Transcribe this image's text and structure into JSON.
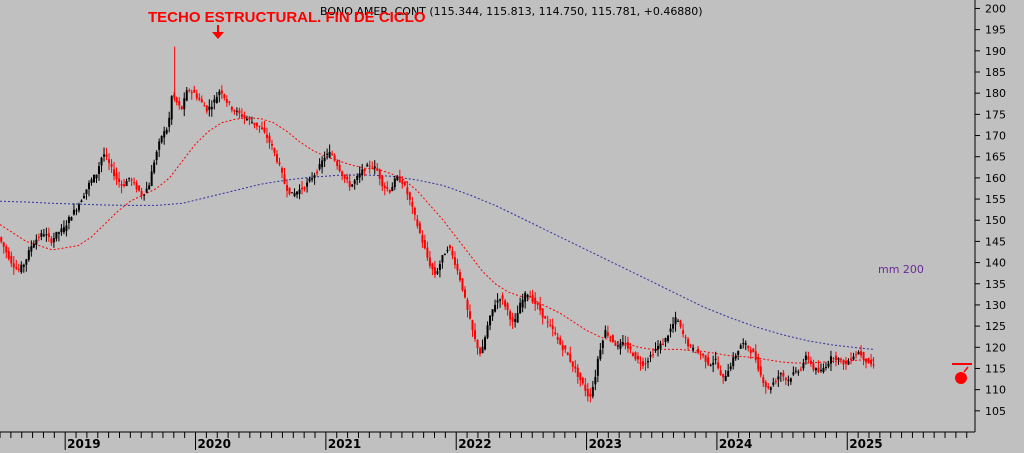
{
  "chart_data": {
    "type": "candlestick",
    "title": "BONO AMER. CONT (115.344, 115.813, 114.750, 115.781, +0.46880)",
    "annotation": "TECHO ESTRUCTURAL. FIN DE CICLO",
    "mm_label": "mm 200",
    "ylim": [
      100,
      202
    ],
    "yticks": [
      105,
      110,
      115,
      120,
      125,
      130,
      135,
      140,
      145,
      150,
      155,
      160,
      165,
      170,
      175,
      180,
      185,
      190,
      195,
      200
    ],
    "xlim": [
      2018.5,
      2025.98
    ],
    "years": [
      "2019",
      "2020",
      "2021",
      "2022",
      "2023",
      "2024",
      "2025"
    ],
    "price": [
      [
        2018.5,
        146
      ],
      [
        2018.55,
        143
      ],
      [
        2018.6,
        140
      ],
      [
        2018.65,
        138
      ],
      [
        2018.7,
        140
      ],
      [
        2018.75,
        144
      ],
      [
        2018.8,
        146
      ],
      [
        2018.85,
        147
      ],
      [
        2018.9,
        145
      ],
      [
        2018.95,
        147
      ],
      [
        2019.0,
        148
      ],
      [
        2019.05,
        151
      ],
      [
        2019.1,
        153
      ],
      [
        2019.15,
        156
      ],
      [
        2019.2,
        159
      ],
      [
        2019.25,
        161
      ],
      [
        2019.3,
        166
      ],
      [
        2019.35,
        163
      ],
      [
        2019.4,
        160
      ],
      [
        2019.45,
        158
      ],
      [
        2019.5,
        160
      ],
      [
        2019.55,
        158
      ],
      [
        2019.6,
        156
      ],
      [
        2019.65,
        158
      ],
      [
        2019.7,
        165
      ],
      [
        2019.75,
        170
      ],
      [
        2019.8,
        172
      ],
      [
        2019.83,
        180
      ],
      [
        2019.86,
        178
      ],
      [
        2019.9,
        176
      ],
      [
        2019.95,
        181
      ],
      [
        2020.0,
        180
      ],
      [
        2020.05,
        178
      ],
      [
        2020.1,
        176
      ],
      [
        2020.15,
        178
      ],
      [
        2020.2,
        181
      ],
      [
        2020.25,
        178
      ],
      [
        2020.3,
        176
      ],
      [
        2020.35,
        175
      ],
      [
        2020.4,
        174
      ],
      [
        2020.45,
        173
      ],
      [
        2020.5,
        172
      ],
      [
        2020.55,
        170
      ],
      [
        2020.6,
        167
      ],
      [
        2020.65,
        163
      ],
      [
        2020.7,
        158
      ],
      [
        2020.75,
        156
      ],
      [
        2020.8,
        157
      ],
      [
        2020.85,
        158
      ],
      [
        2020.9,
        160
      ],
      [
        2020.95,
        162
      ],
      [
        2021.0,
        165
      ],
      [
        2021.05,
        166
      ],
      [
        2021.1,
        163
      ],
      [
        2021.15,
        160
      ],
      [
        2021.2,
        158
      ],
      [
        2021.25,
        160
      ],
      [
        2021.3,
        162
      ],
      [
        2021.35,
        163
      ],
      [
        2021.4,
        162
      ],
      [
        2021.45,
        158
      ],
      [
        2021.5,
        157
      ],
      [
        2021.55,
        160
      ],
      [
        2021.6,
        159
      ],
      [
        2021.65,
        155
      ],
      [
        2021.7,
        150
      ],
      [
        2021.75,
        145
      ],
      [
        2021.8,
        140
      ],
      [
        2021.85,
        137
      ],
      [
        2021.9,
        141
      ],
      [
        2021.95,
        144
      ],
      [
        2022.0,
        140
      ],
      [
        2022.05,
        135
      ],
      [
        2022.1,
        128
      ],
      [
        2022.15,
        122
      ],
      [
        2022.2,
        118
      ],
      [
        2022.25,
        125
      ],
      [
        2022.3,
        130
      ],
      [
        2022.35,
        132
      ],
      [
        2022.4,
        129
      ],
      [
        2022.45,
        125
      ],
      [
        2022.5,
        130
      ],
      [
        2022.55,
        133
      ],
      [
        2022.6,
        131
      ],
      [
        2022.65,
        129
      ],
      [
        2022.7,
        126
      ],
      [
        2022.75,
        124
      ],
      [
        2022.8,
        121
      ],
      [
        2022.85,
        119
      ],
      [
        2022.9,
        116
      ],
      [
        2022.95,
        113
      ],
      [
        2023.0,
        110
      ],
      [
        2023.03,
        108
      ],
      [
        2023.07,
        112
      ],
      [
        2023.1,
        118
      ],
      [
        2023.15,
        124
      ],
      [
        2023.2,
        122
      ],
      [
        2023.25,
        120
      ],
      [
        2023.3,
        121
      ],
      [
        2023.35,
        119
      ],
      [
        2023.4,
        117
      ],
      [
        2023.45,
        116
      ],
      [
        2023.5,
        118
      ],
      [
        2023.55,
        120
      ],
      [
        2023.6,
        121
      ],
      [
        2023.65,
        124
      ],
      [
        2023.7,
        127
      ],
      [
        2023.75,
        123
      ],
      [
        2023.8,
        120
      ],
      [
        2023.85,
        119
      ],
      [
        2023.9,
        118
      ],
      [
        2023.95,
        116
      ],
      [
        2024.0,
        117
      ],
      [
        2024.05,
        112
      ],
      [
        2024.1,
        115
      ],
      [
        2024.15,
        118
      ],
      [
        2024.2,
        121
      ],
      [
        2024.25,
        120
      ],
      [
        2024.3,
        118
      ],
      [
        2024.35,
        113
      ],
      [
        2024.4,
        110
      ],
      [
        2024.45,
        112
      ],
      [
        2024.5,
        114
      ],
      [
        2024.55,
        112
      ],
      [
        2024.6,
        114
      ],
      [
        2024.65,
        115
      ],
      [
        2024.7,
        118
      ],
      [
        2024.75,
        115
      ],
      [
        2024.8,
        114
      ],
      [
        2024.85,
        116
      ],
      [
        2024.9,
        118
      ],
      [
        2024.95,
        117
      ],
      [
        2025.0,
        116
      ],
      [
        2025.05,
        118
      ],
      [
        2025.1,
        119
      ],
      [
        2025.15,
        117
      ],
      [
        2025.2,
        115.8
      ]
    ],
    "ma_short": [
      [
        2018.5,
        149
      ],
      [
        2018.6,
        147
      ],
      [
        2018.7,
        145
      ],
      [
        2018.8,
        144
      ],
      [
        2018.9,
        143
      ],
      [
        2019.0,
        143.5
      ],
      [
        2019.1,
        144
      ],
      [
        2019.2,
        146
      ],
      [
        2019.3,
        149
      ],
      [
        2019.4,
        152
      ],
      [
        2019.5,
        154.5
      ],
      [
        2019.6,
        156
      ],
      [
        2019.7,
        157.5
      ],
      [
        2019.8,
        160
      ],
      [
        2019.9,
        164
      ],
      [
        2020.0,
        168
      ],
      [
        2020.1,
        171
      ],
      [
        2020.2,
        173
      ],
      [
        2020.3,
        173.8
      ],
      [
        2020.4,
        174.2
      ],
      [
        2020.5,
        174
      ],
      [
        2020.6,
        173
      ],
      [
        2020.7,
        171
      ],
      [
        2020.8,
        168.5
      ],
      [
        2020.9,
        166.5
      ],
      [
        2021.0,
        165
      ],
      [
        2021.1,
        164
      ],
      [
        2021.2,
        163
      ],
      [
        2021.3,
        162.3
      ],
      [
        2021.4,
        162
      ],
      [
        2021.5,
        161
      ],
      [
        2021.6,
        159.5
      ],
      [
        2021.7,
        157
      ],
      [
        2021.8,
        153.5
      ],
      [
        2021.9,
        150
      ],
      [
        2022.0,
        146
      ],
      [
        2022.1,
        142
      ],
      [
        2022.2,
        138
      ],
      [
        2022.3,
        135
      ],
      [
        2022.4,
        133
      ],
      [
        2022.5,
        132
      ],
      [
        2022.6,
        131
      ],
      [
        2022.7,
        129.5
      ],
      [
        2022.8,
        128
      ],
      [
        2022.9,
        126
      ],
      [
        2023.0,
        124
      ],
      [
        2023.1,
        122.5
      ],
      [
        2023.2,
        121.5
      ],
      [
        2023.3,
        121
      ],
      [
        2023.4,
        120
      ],
      [
        2023.5,
        119.5
      ],
      [
        2023.6,
        119.5
      ],
      [
        2023.7,
        119.5
      ],
      [
        2023.8,
        119.3
      ],
      [
        2023.9,
        119
      ],
      [
        2024.0,
        118.5
      ],
      [
        2024.1,
        118
      ],
      [
        2024.2,
        117.8
      ],
      [
        2024.3,
        117.5
      ],
      [
        2024.4,
        117
      ],
      [
        2024.5,
        116.5
      ],
      [
        2024.6,
        116.3
      ],
      [
        2024.7,
        116.3
      ],
      [
        2024.8,
        116.5
      ],
      [
        2024.9,
        116.7
      ],
      [
        2025.0,
        116.8
      ],
      [
        2025.1,
        117
      ],
      [
        2025.2,
        117
      ]
    ],
    "ma200": [
      [
        2018.5,
        154.5
      ],
      [
        2018.7,
        154.3
      ],
      [
        2018.9,
        154
      ],
      [
        2019.1,
        153.8
      ],
      [
        2019.3,
        153.6
      ],
      [
        2019.5,
        153.5
      ],
      [
        2019.7,
        153.5
      ],
      [
        2019.9,
        154
      ],
      [
        2020.1,
        155.5
      ],
      [
        2020.3,
        157
      ],
      [
        2020.5,
        158.5
      ],
      [
        2020.7,
        159.5
      ],
      [
        2020.9,
        160.2
      ],
      [
        2021.1,
        160.6
      ],
      [
        2021.3,
        160.7
      ],
      [
        2021.5,
        160.4
      ],
      [
        2021.7,
        159.5
      ],
      [
        2021.9,
        158.2
      ],
      [
        2022.1,
        156
      ],
      [
        2022.3,
        153.5
      ],
      [
        2022.5,
        150.5
      ],
      [
        2022.7,
        147.5
      ],
      [
        2022.9,
        144.5
      ],
      [
        2023.1,
        141.5
      ],
      [
        2023.3,
        138.5
      ],
      [
        2023.5,
        135.5
      ],
      [
        2023.7,
        132.5
      ],
      [
        2023.9,
        129.5
      ],
      [
        2024.1,
        127
      ],
      [
        2024.3,
        124.8
      ],
      [
        2024.5,
        123
      ],
      [
        2024.7,
        121.5
      ],
      [
        2024.9,
        120.5
      ],
      [
        2025.1,
        119.8
      ],
      [
        2025.2,
        119.5
      ]
    ],
    "colors": {
      "up": "#000000",
      "down": "#ff0000",
      "ma_short": "#ff0000",
      "ma200": "#3030a0",
      "mm_label": "#6a2a9a",
      "annotation": "#ff0000",
      "background": "#c0c0c0"
    }
  }
}
